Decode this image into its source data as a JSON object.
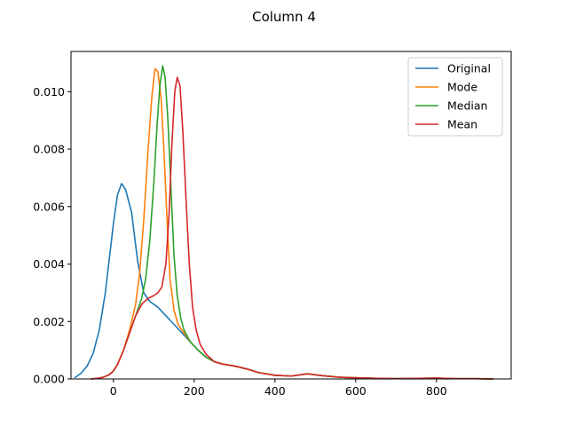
{
  "chart_data": {
    "type": "line",
    "title": "Column 4",
    "xlabel": "",
    "ylabel": "",
    "xlim": [
      -105,
      985
    ],
    "ylim": [
      0,
      0.0114
    ],
    "xticks": [
      0,
      200,
      400,
      600,
      800
    ],
    "yticks": [
      0.0,
      0.002,
      0.004,
      0.006,
      0.008,
      0.01
    ],
    "ytick_labels": [
      "0.000",
      "0.002",
      "0.004",
      "0.006",
      "0.008",
      "0.010"
    ],
    "xtick_labels": [
      "0",
      "200",
      "400",
      "600",
      "800"
    ],
    "grid": false,
    "legend_position": "top-right",
    "series": [
      {
        "name": "Original",
        "color": "#1f77b4",
        "x": [
          -95,
          -80,
          -65,
          -50,
          -35,
          -20,
          -10,
          0,
          10,
          20,
          30,
          45,
          60,
          75,
          90,
          110,
          130,
          150,
          170,
          190,
          210,
          230,
          250,
          270,
          300,
          330,
          360,
          400,
          440,
          480,
          520,
          560,
          600,
          650,
          700,
          760,
          800,
          850,
          900,
          940
        ],
        "y": [
          5e-05,
          0.0002,
          0.00045,
          0.0009,
          0.0017,
          0.003,
          0.0042,
          0.0054,
          0.0064,
          0.0068,
          0.0066,
          0.0058,
          0.0041,
          0.003,
          0.0027,
          0.0025,
          0.0022,
          0.0019,
          0.0016,
          0.0013,
          0.001,
          0.00075,
          0.0006,
          0.00052,
          0.00045,
          0.00035,
          0.00022,
          0.00013,
          0.0001,
          0.00018,
          0.00011,
          6e-05,
          4e-05,
          2e-05,
          1e-05,
          2e-05,
          3e-05,
          1e-05,
          1e-05,
          0.0
        ]
      },
      {
        "name": "Mode",
        "color": "#ff7f0e",
        "x": [
          -55,
          -40,
          -25,
          -10,
          0,
          10,
          25,
          40,
          55,
          65,
          75,
          85,
          95,
          103,
          110,
          118,
          125,
          133,
          140,
          150,
          160,
          175,
          190,
          210,
          230,
          250,
          270,
          300,
          330,
          360,
          400,
          440,
          480,
          520,
          560,
          600,
          650,
          700,
          760,
          800,
          850,
          900,
          940
        ],
        "y": [
          0.0,
          2e-05,
          6e-05,
          0.00015,
          0.00028,
          0.0005,
          0.001,
          0.0017,
          0.0026,
          0.0037,
          0.0055,
          0.0078,
          0.0098,
          0.0108,
          0.0107,
          0.0098,
          0.008,
          0.0055,
          0.0035,
          0.0024,
          0.0019,
          0.0016,
          0.0013,
          0.001,
          0.00075,
          0.0006,
          0.00052,
          0.00045,
          0.00035,
          0.00022,
          0.00013,
          0.0001,
          0.00018,
          0.00011,
          6e-05,
          4e-05,
          2e-05,
          1e-05,
          2e-05,
          3e-05,
          1e-05,
          1e-05,
          0.0
        ]
      },
      {
        "name": "Median",
        "color": "#2ca02c",
        "x": [
          -55,
          -40,
          -25,
          -10,
          0,
          10,
          25,
          40,
          55,
          70,
          80,
          90,
          100,
          108,
          115,
          122,
          128,
          135,
          143,
          150,
          158,
          167,
          175,
          190,
          210,
          230,
          250,
          270,
          300,
          330,
          360,
          400,
          440,
          480,
          520,
          560,
          600,
          650,
          700,
          760,
          800,
          850,
          900,
          940
        ],
        "y": [
          0.0,
          2e-05,
          6e-05,
          0.00015,
          0.00028,
          0.0005,
          0.001,
          0.0016,
          0.0022,
          0.0028,
          0.0035,
          0.0048,
          0.0068,
          0.0088,
          0.0102,
          0.0109,
          0.0105,
          0.009,
          0.0065,
          0.0043,
          0.0029,
          0.0021,
          0.0017,
          0.0013,
          0.001,
          0.00075,
          0.0006,
          0.00052,
          0.00045,
          0.00035,
          0.00022,
          0.00013,
          0.0001,
          0.00018,
          0.00011,
          6e-05,
          4e-05,
          2e-05,
          1e-05,
          2e-05,
          3e-05,
          1e-05,
          1e-05,
          0.0
        ]
      },
      {
        "name": "Mean",
        "color": "#d62728",
        "x": [
          -55,
          -40,
          -25,
          -10,
          0,
          10,
          25,
          40,
          55,
          70,
          85,
          100,
          110,
          120,
          130,
          138,
          145,
          152,
          158,
          165,
          172,
          180,
          188,
          196,
          205,
          215,
          230,
          250,
          270,
          300,
          330,
          360,
          400,
          440,
          480,
          520,
          560,
          600,
          650,
          700,
          760,
          800,
          850,
          900,
          940
        ],
        "y": [
          0.0,
          2e-05,
          6e-05,
          0.00015,
          0.00028,
          0.0005,
          0.001,
          0.0016,
          0.0022,
          0.0026,
          0.0028,
          0.0029,
          0.003,
          0.0032,
          0.004,
          0.0058,
          0.0082,
          0.01,
          0.0105,
          0.0102,
          0.0086,
          0.0062,
          0.004,
          0.0025,
          0.0017,
          0.0012,
          0.00085,
          0.0006,
          0.00052,
          0.00045,
          0.00035,
          0.00022,
          0.00013,
          0.0001,
          0.00018,
          0.00011,
          6e-05,
          4e-05,
          2e-05,
          1e-05,
          2e-05,
          3e-05,
          1e-05,
          1e-05,
          0.0
        ]
      }
    ]
  }
}
